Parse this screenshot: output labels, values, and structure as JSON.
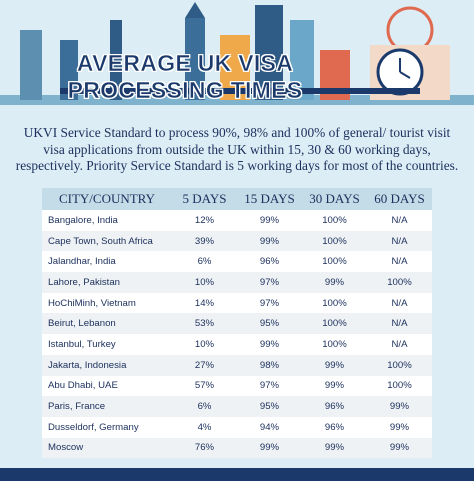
{
  "header": {
    "title": "AVERAGE UK VISA PROCESSING TIMES"
  },
  "intro": {
    "lines": [
      "UKVI Service Standard to process 90%, 98% and 100% of  general/ tourist visit",
      "visa applications from outside  the UK within 15, 30 & 60 working days,",
      "respectively.  Priority Service Standard is 5 working days for most of the countries."
    ]
  },
  "table": {
    "columns": [
      "CITY/COUNTRY",
      "5 DAYS",
      "15 DAYS",
      "30 DAYS",
      "60 DAYS"
    ],
    "rows": [
      [
        "Bangalore, India",
        "12%",
        "99%",
        "100%",
        "N/A"
      ],
      [
        "Cape Town, South Africa",
        "39%",
        "99%",
        "100%",
        "N/A"
      ],
      [
        "Jalandhar, India",
        "6%",
        "96%",
        "100%",
        "N/A"
      ],
      [
        "Lahore, Pakistan",
        "10%",
        "97%",
        "99%",
        "100%"
      ],
      [
        "HoChiMinh, Vietnam",
        "14%",
        "97%",
        "100%",
        "N/A"
      ],
      [
        "Beirut, Lebanon",
        "53%",
        "95%",
        "100%",
        "N/A"
      ],
      [
        "Istanbul, Turkey",
        "10%",
        "99%",
        "100%",
        "N/A"
      ],
      [
        "Jakarta, Indonesia",
        "27%",
        "98%",
        "99%",
        "100%"
      ],
      [
        "Abu Dhabi, UAE",
        "57%",
        "97%",
        "99%",
        "100%"
      ],
      [
        "Paris, France",
        "6%",
        "95%",
        "96%",
        "99%"
      ],
      [
        "Dusseldorf, Germany",
        "4%",
        "94%",
        "96%",
        "99%"
      ],
      [
        "Moscow",
        "76%",
        "99%",
        "99%",
        "99%"
      ]
    ]
  }
}
